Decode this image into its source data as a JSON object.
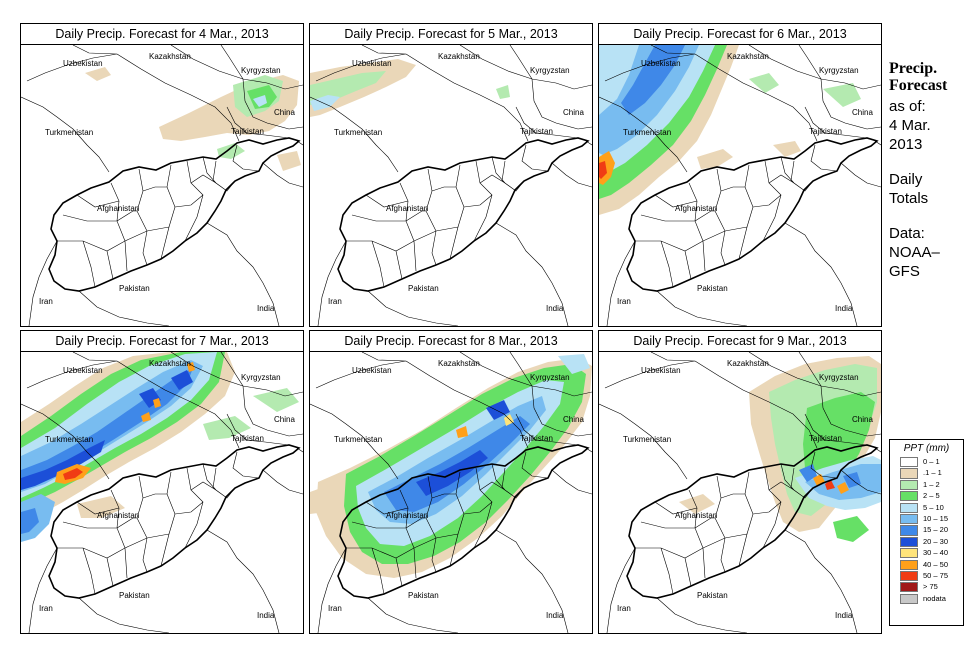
{
  "panels": [
    {
      "title": "Daily Precip. Forecast for  4 Mar., 2013"
    },
    {
      "title": "Daily Precip. Forecast for  5 Mar., 2013"
    },
    {
      "title": "Daily Precip. Forecast for  6 Mar., 2013"
    },
    {
      "title": "Daily Precip. Forecast for  7 Mar., 2013"
    },
    {
      "title": "Daily Precip. Forecast for  8 Mar., 2013"
    },
    {
      "title": "Daily Precip. Forecast for  9 Mar., 2013"
    }
  ],
  "map_labels": {
    "kazakhstan": "Kazakhstan",
    "uzbekistan": "Uzbekistan",
    "kyrgyzstan": "Kyrgyzstan",
    "china": "China",
    "tajikistan": "Tajikistan",
    "turkmenistan": "Turkmenistan",
    "afghanistan": "Afghanistan",
    "pakistan": "Pakistan",
    "iran": "Iran",
    "india": "India"
  },
  "info": {
    "title_line1": "Precip.",
    "title_line2": "Forecast",
    "as_of": "as of:",
    "date_line1": "4 Mar.",
    "date_line2": "2013",
    "totals_line1": "Daily",
    "totals_line2": "Totals",
    "data_line1": "Data:",
    "data_line2": "NOAA–",
    "data_line3": "GFS"
  },
  "legend": {
    "title": "PPT (mm)",
    "items": [
      {
        "label": "0 – 1",
        "color": "#ffffff"
      },
      {
        "label": ".1 – 1",
        "color": "#ead7b8"
      },
      {
        "label": "1 – 2",
        "color": "#b4eab0"
      },
      {
        "label": "2 – 5",
        "color": "#66e066"
      },
      {
        "label": "5 – 10",
        "color": "#b8e2f5"
      },
      {
        "label": "10 – 15",
        "color": "#78bcf0"
      },
      {
        "label": "15 – 20",
        "color": "#3f88e8"
      },
      {
        "label": "20 – 30",
        "color": "#1c4fd8"
      },
      {
        "label": "30 – 40",
        "color": "#ffe47a"
      },
      {
        "label": "40 – 50",
        "color": "#ffa01a"
      },
      {
        "label": "50 – 75",
        "color": "#f03c14"
      },
      {
        "label": "> 75",
        "color": "#a01818"
      },
      {
        "label": "nodata",
        "color": "#c8c8c8"
      }
    ]
  }
}
